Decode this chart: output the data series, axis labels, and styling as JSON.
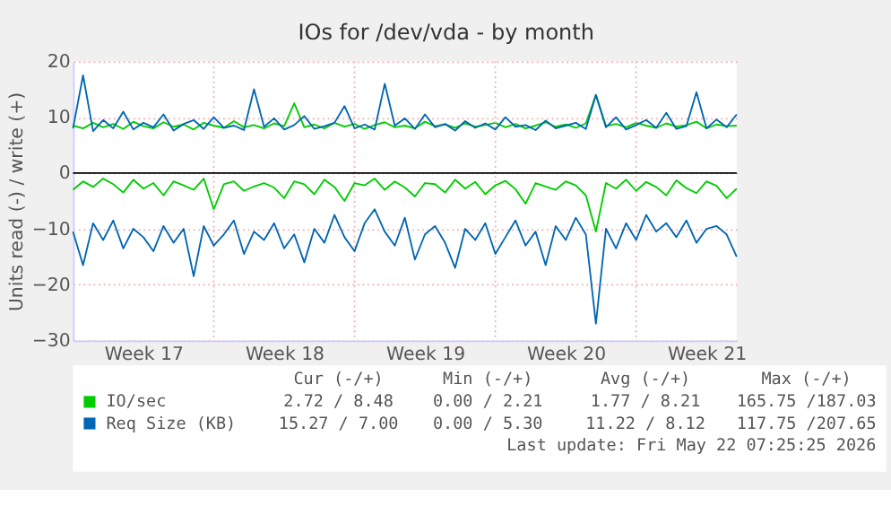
{
  "chart_data": {
    "type": "line",
    "title": "IOs for /dev/vda - by month",
    "ylabel": "Units read (-) / write (+)",
    "categories": [
      null,
      null,
      null,
      null,
      null,
      null,
      null,
      "Week 17",
      null,
      null,
      null,
      null,
      null,
      null,
      null,
      null,
      null,
      null,
      null,
      null,
      null,
      "Week 18",
      null,
      null,
      null,
      null,
      null,
      null,
      null,
      null,
      null,
      null,
      null,
      null,
      null,
      "Week 19",
      null,
      null,
      null,
      null,
      null,
      null,
      null,
      null,
      null,
      null,
      null,
      null,
      null,
      "Week 20",
      null,
      null,
      null,
      null,
      null,
      null,
      null,
      null,
      null,
      null,
      null,
      null,
      null,
      "Week 21",
      null,
      null,
      null
    ],
    "ylim": [
      -30,
      20
    ],
    "yticks": [
      -30,
      -20,
      -10,
      0,
      10,
      20
    ],
    "grid": true,
    "legend": "bottom",
    "ref_lines": [
      {
        "axis": "y",
        "value": 0,
        "color": "#000000"
      }
    ],
    "series": [
      {
        "name": "IO/sec",
        "color": "#00cc00",
        "values": [
          8.5,
          8.0,
          9.0,
          8.2,
          8.8,
          7.9,
          9.2,
          8.4,
          8.0,
          9.1,
          8.3,
          8.7,
          7.8,
          9.0,
          8.5,
          8.1,
          9.3,
          8.2,
          8.6,
          8.0,
          8.9,
          8.4,
          12.5,
          8.2,
          8.7,
          8.0,
          9.0,
          8.3,
          8.8,
          7.9,
          8.6,
          9.1,
          8.2,
          8.5,
          8.0,
          9.2,
          8.4,
          8.7,
          8.1,
          8.9,
          8.3,
          8.6,
          9.0,
          8.2,
          8.8,
          8.0,
          8.5,
          9.1,
          8.3,
          8.7,
          8.1,
          8.9,
          14.0,
          8.4,
          8.8,
          8.2,
          9.0,
          8.5,
          8.1,
          8.9,
          8.3,
          8.6,
          9.2,
          8.0,
          8.7,
          8.4,
          8.5
        ]
      },
      {
        "color": "#00cc00",
        "values": [
          -3.0,
          -1.5,
          -2.5,
          -1.0,
          -2.0,
          -3.5,
          -1.2,
          -2.8,
          -1.8,
          -4.0,
          -1.5,
          -2.2,
          -3.0,
          -1.0,
          -6.5,
          -2.0,
          -1.5,
          -3.2,
          -2.4,
          -1.8,
          -2.6,
          -4.5,
          -1.5,
          -2.0,
          -3.8,
          -1.2,
          -2.5,
          -5.0,
          -1.8,
          -2.2,
          -1.0,
          -3.0,
          -1.5,
          -2.6,
          -4.2,
          -1.8,
          -2.0,
          -3.5,
          -1.2,
          -2.8,
          -1.6,
          -3.8,
          -2.2,
          -1.4,
          -2.9,
          -5.5,
          -1.8,
          -2.4,
          -3.0,
          -1.5,
          -2.2,
          -4.0,
          -10.5,
          -1.8,
          -2.8,
          -1.2,
          -3.2,
          -1.6,
          -2.5,
          -4.0,
          -1.3,
          -2.7,
          -3.6,
          -1.5,
          -2.3,
          -4.5,
          -2.8
        ]
      },
      {
        "name": "Req Size (KB)",
        "color": "#0066b3",
        "values": [
          8.0,
          17.5,
          7.5,
          9.5,
          8.0,
          11.0,
          7.8,
          9.0,
          8.2,
          10.5,
          7.6,
          8.8,
          9.5,
          7.9,
          10.0,
          8.1,
          8.5,
          7.7,
          15.0,
          8.3,
          9.8,
          7.8,
          8.6,
          10.2,
          7.9,
          8.4,
          9.0,
          12.0,
          8.0,
          8.7,
          7.8,
          16.0,
          8.5,
          9.8,
          7.9,
          10.5,
          8.2,
          8.8,
          7.6,
          9.3,
          8.1,
          8.9,
          7.8,
          10.0,
          8.3,
          8.6,
          7.7,
          9.4,
          8.0,
          8.5,
          9.0,
          7.9,
          14.0,
          8.2,
          10.0,
          7.8,
          8.6,
          9.5,
          8.1,
          10.8,
          7.9,
          8.4,
          14.5,
          8.0,
          9.6,
          8.2,
          10.5
        ]
      },
      {
        "color": "#0066b3",
        "values": [
          -10.5,
          -16.5,
          -9.0,
          -12.0,
          -8.5,
          -13.5,
          -10.0,
          -11.5,
          -14.0,
          -9.5,
          -12.5,
          -10.0,
          -18.5,
          -9.5,
          -13.0,
          -11.0,
          -8.5,
          -14.5,
          -10.5,
          -12.0,
          -9.0,
          -13.5,
          -11.0,
          -16.0,
          -10.0,
          -12.5,
          -7.5,
          -11.5,
          -14.0,
          -9.0,
          -6.5,
          -10.5,
          -13.0,
          -8.0,
          -15.5,
          -11.0,
          -9.5,
          -12.5,
          -17.0,
          -10.0,
          -12.0,
          -9.0,
          -14.5,
          -11.5,
          -8.5,
          -13.0,
          -10.5,
          -16.5,
          -9.5,
          -12.0,
          -8.0,
          -11.0,
          -27.0,
          -10.0,
          -13.5,
          -9.0,
          -12.0,
          -7.5,
          -10.5,
          -9.0,
          -11.5,
          -8.5,
          -12.5,
          -10.0,
          -9.5,
          -11.0,
          -15.0
        ]
      }
    ],
    "annotations": [
      "Cur (-/+)",
      "Min (-/+)",
      "Avg (-/+)",
      "Max (-/+)",
      "2.72 / 8.48",
      "0.00 / 2.21",
      "1.77 / 8.21",
      "165.75 /187.03",
      "15.27 / 7.00",
      "0.00 / 5.30",
      "11.22 / 8.12",
      "117.75 /207.65",
      "Last update: Fri May 22 07:25:25 2026"
    ]
  }
}
